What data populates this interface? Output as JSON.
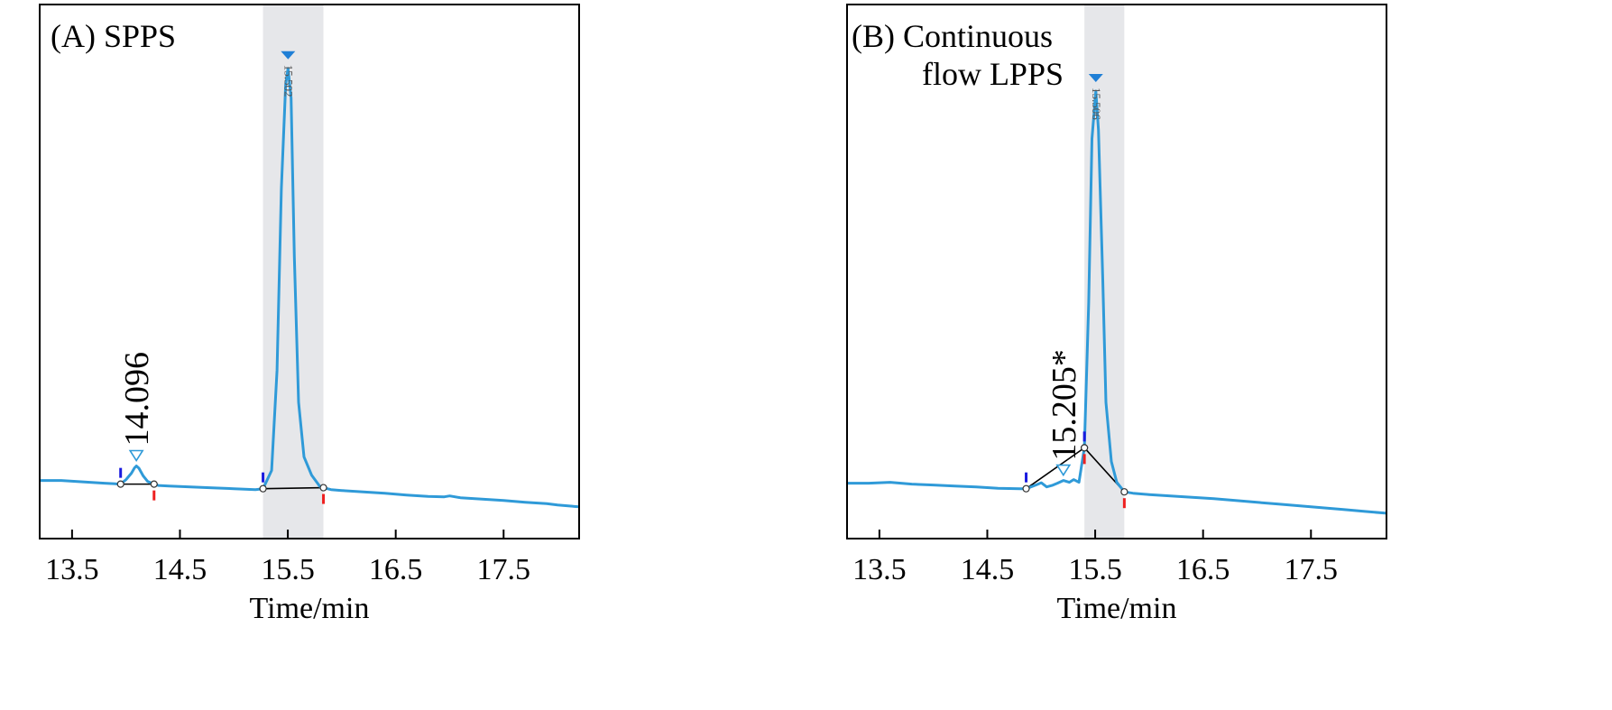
{
  "colors": {
    "trace": "#2f9ad8",
    "baseline": "#000000",
    "highlight": "#e6e7ea",
    "start_tick": "#1a1adf",
    "end_tick": "#ee2020",
    "peak_marker": "#1f7fd6",
    "small_peak_marker": "#2f9ad8",
    "vertical_label": "#555555"
  },
  "chart_data": [
    {
      "type": "line",
      "title": "(A) SPPS",
      "xlabel": "Time/min",
      "ylabel": "",
      "xlim": [
        13.2,
        18.2
      ],
      "ylim": [
        -10,
        100
      ],
      "grid": false,
      "x_ticks": [
        "13.5",
        "14.5",
        "15.5",
        "16.5",
        "17.5"
      ],
      "highlight_range": [
        15.27,
        15.83
      ],
      "series": [
        {
          "x": [
            13.2,
            13.4,
            13.6,
            13.8,
            13.95,
            14.0,
            14.05,
            14.08,
            14.096,
            14.12,
            14.16,
            14.2,
            14.26,
            14.3,
            14.4,
            14.6,
            14.8,
            15.0,
            15.2,
            15.27,
            15.35,
            15.4,
            15.44,
            15.48,
            15.502,
            15.53,
            15.56,
            15.6,
            15.65,
            15.72,
            15.8,
            15.9,
            16.0,
            16.2,
            16.4,
            16.6,
            16.8,
            16.95,
            17.0,
            17.1,
            17.3,
            17.5,
            17.7,
            17.9,
            18.0,
            18.1,
            18.2
          ],
          "y": [
            0.8,
            0.8,
            0.5,
            0.2,
            0.0,
            1.0,
            2.4,
            3.6,
            4.0,
            3.5,
            1.8,
            0.6,
            0.0,
            -0.3,
            -0.4,
            -0.6,
            -0.8,
            -1.0,
            -1.2,
            -1.0,
            3.0,
            25.0,
            65.0,
            88.0,
            91.5,
            85.0,
            50.0,
            18.0,
            6.0,
            2.0,
            -0.6,
            -1.2,
            -1.4,
            -1.7,
            -2.0,
            -2.4,
            -2.7,
            -2.8,
            -2.6,
            -3.0,
            -3.3,
            -3.6,
            -4.0,
            -4.3,
            -4.6,
            -4.8,
            -5.0
          ]
        }
      ],
      "peaks": [
        {
          "rt": 14.096,
          "height": 4.0,
          "label": "14.096",
          "start": 13.95,
          "end": 14.26,
          "major": false
        },
        {
          "rt": 15.502,
          "height": 91.5,
          "label": "15.502",
          "start": 15.27,
          "end": 15.83,
          "major": true
        }
      ]
    },
    {
      "type": "line",
      "title": "(B) Continuous flow LPPS",
      "title_lines": [
        "(B) Continuous",
        "flow LPPS"
      ],
      "xlabel": "Time/min",
      "ylabel": "",
      "xlim": [
        13.2,
        18.2
      ],
      "ylim": [
        -10,
        100
      ],
      "grid": false,
      "x_ticks": [
        "13.5",
        "14.5",
        "15.5",
        "16.5",
        "17.5"
      ],
      "highlight_range": [
        15.4,
        15.77
      ],
      "series": [
        {
          "x": [
            13.2,
            13.4,
            13.6,
            13.8,
            14.0,
            14.2,
            14.4,
            14.6,
            14.8,
            14.86,
            14.95,
            15.0,
            15.05,
            15.1,
            15.15,
            15.205,
            15.26,
            15.3,
            15.35,
            15.4,
            15.44,
            15.47,
            15.506,
            15.53,
            15.57,
            15.6,
            15.65,
            15.7,
            15.77,
            15.85,
            16.0,
            16.2,
            16.4,
            16.6,
            16.8,
            17.0,
            17.2,
            17.4,
            17.6,
            17.8,
            18.0,
            18.2
          ],
          "y": [
            0.2,
            0.2,
            0.4,
            0.0,
            -0.2,
            -0.4,
            -0.6,
            -0.9,
            -1.0,
            -1.0,
            -0.2,
            0.3,
            -0.6,
            -0.3,
            0.2,
            0.8,
            0.4,
            1.0,
            0.4,
            8.0,
            40.0,
            76.0,
            86.5,
            78.0,
            45.0,
            18.0,
            5.0,
            0.4,
            -1.7,
            -2.0,
            -2.3,
            -2.6,
            -2.9,
            -3.2,
            -3.6,
            -4.0,
            -4.4,
            -4.8,
            -5.2,
            -5.6,
            -6.0,
            -6.4
          ]
        }
      ],
      "peaks": [
        {
          "rt": 15.205,
          "height": 0.8,
          "label": "15.205*",
          "start": 14.86,
          "end": 15.4,
          "major": false
        },
        {
          "rt": 15.506,
          "height": 86.5,
          "label": "15.506",
          "start": 15.4,
          "end": 15.77,
          "major": true
        }
      ]
    }
  ]
}
